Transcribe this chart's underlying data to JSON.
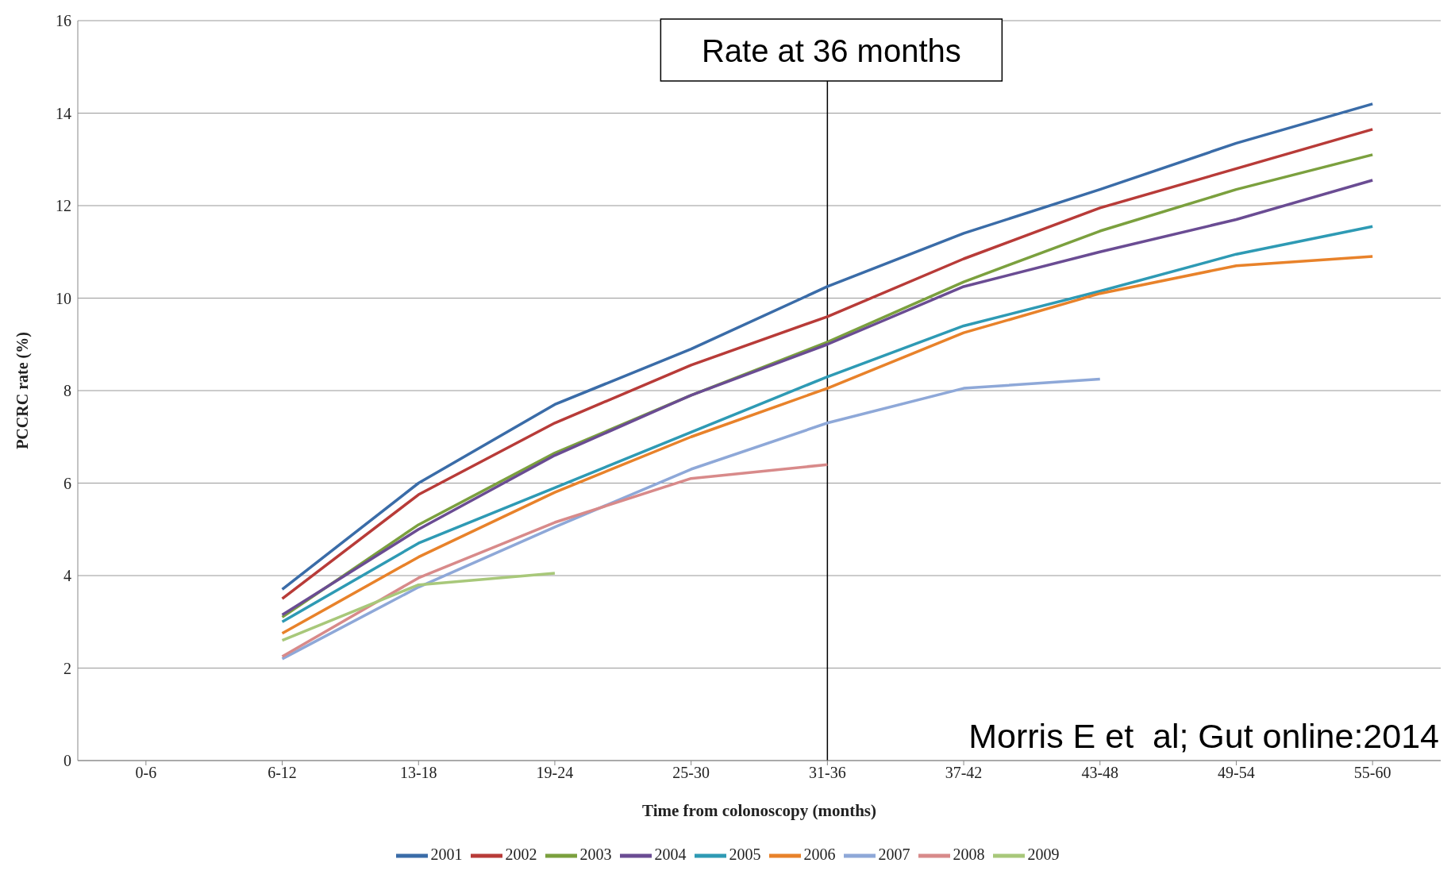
{
  "chart_data": {
    "type": "line",
    "xlabel": "Time from colonoscopy (months)",
    "ylabel": "PCCRC rate (%)",
    "categories": [
      "0-6",
      "6-12",
      "13-18",
      "19-24",
      "25-30",
      "31-36",
      "37-42",
      "43-48",
      "49-54",
      "55-60"
    ],
    "series": [
      {
        "name": "2001",
        "color": "#3a6ca8",
        "values": [
          null,
          3.7,
          6.0,
          7.7,
          8.9,
          10.25,
          11.4,
          12.35,
          13.35,
          14.2
        ]
      },
      {
        "name": "2002",
        "color": "#b83b38",
        "values": [
          null,
          3.5,
          5.75,
          7.3,
          8.55,
          9.6,
          10.85,
          11.95,
          12.8,
          13.65
        ]
      },
      {
        "name": "2003",
        "color": "#7ba03e",
        "values": [
          null,
          3.1,
          5.1,
          6.65,
          7.9,
          9.05,
          10.35,
          11.45,
          12.35,
          13.1
        ]
      },
      {
        "name": "2004",
        "color": "#6a4c93",
        "values": [
          null,
          3.15,
          5.0,
          6.6,
          7.9,
          9.0,
          10.25,
          11.0,
          11.7,
          12.55
        ]
      },
      {
        "name": "2005",
        "color": "#2e9ab4",
        "values": [
          null,
          3.0,
          4.7,
          5.9,
          7.1,
          8.3,
          9.4,
          10.15,
          10.95,
          11.55
        ]
      },
      {
        "name": "2006",
        "color": "#e8822a",
        "values": [
          null,
          2.75,
          4.4,
          5.8,
          7.0,
          8.05,
          9.25,
          10.1,
          10.7,
          10.9
        ]
      },
      {
        "name": "2007",
        "color": "#8ea8d8",
        "values": [
          null,
          2.2,
          3.75,
          5.05,
          6.3,
          7.3,
          8.05,
          8.25,
          null,
          null
        ]
      },
      {
        "name": "2008",
        "color": "#d88a8a",
        "values": [
          null,
          2.25,
          3.95,
          5.15,
          6.1,
          6.4,
          null,
          null,
          null,
          null
        ]
      },
      {
        "name": "2009",
        "color": "#a8c87a",
        "values": [
          null,
          2.6,
          3.8,
          4.05,
          null,
          null,
          null,
          null,
          null,
          null
        ]
      }
    ],
    "ylim": [
      0,
      16
    ],
    "yticks": [
      0,
      2,
      4,
      6,
      8,
      10,
      12,
      14,
      16
    ],
    "grid": "y",
    "legend": "bottom",
    "marker": "none",
    "line_style": "solid",
    "ref_lines": [
      {
        "axis": "x",
        "value": "31-36",
        "label": "Rate at 36 months",
        "color": "#000000"
      }
    ],
    "annotations": [
      "Morris E et  al; Gut online:2014"
    ]
  }
}
